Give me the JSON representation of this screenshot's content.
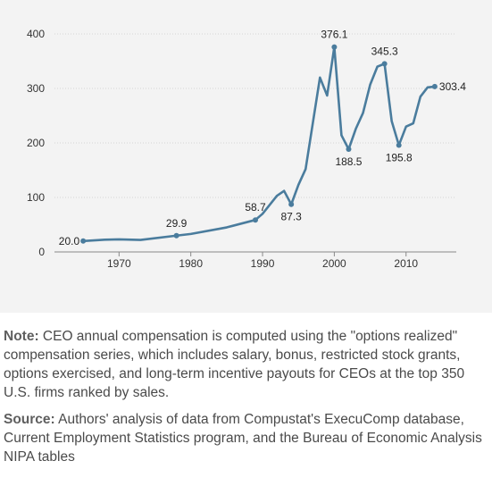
{
  "chart_data": {
    "type": "line",
    "title": "",
    "xlabel": "",
    "ylabel": "",
    "xlim": [
      1961,
      2017
    ],
    "ylim": [
      0,
      400
    ],
    "x_ticks": [
      "1970",
      "1980",
      "1990",
      "2000",
      "2010"
    ],
    "y_ticks": [
      "0",
      "100",
      "200",
      "300",
      "400"
    ],
    "grid": true,
    "color": "#4a7c9d",
    "x": [
      1965,
      1968,
      1970,
      1973,
      1978,
      1980,
      1985,
      1989,
      1990,
      1992,
      1993,
      1994,
      1995,
      1996,
      1997,
      1998,
      1999,
      2000,
      2001,
      2002,
      2003,
      2004,
      2005,
      2006,
      2007,
      2008,
      2009,
      2010,
      2011,
      2012,
      2013,
      2014
    ],
    "series": [
      {
        "values": [
          20.0,
          22.5,
          23.0,
          22.0,
          29.9,
          33.0,
          45.0,
          58.7,
          70.0,
          103.0,
          112.0,
          87.3,
          123.0,
          152.0,
          236.0,
          320.0,
          287.0,
          376.1,
          214.0,
          188.5,
          226.0,
          255.0,
          307.0,
          340.0,
          345.3,
          240.0,
          195.8,
          230.0,
          236.0,
          285.0,
          302.0,
          303.4
        ]
      }
    ],
    "point_labels": [
      {
        "x": 1965,
        "y": 20.0,
        "text": "20.0"
      },
      {
        "x": 1978,
        "y": 29.9,
        "text": "29.9"
      },
      {
        "x": 1989,
        "y": 58.7,
        "text": "58.7"
      },
      {
        "x": 1994,
        "y": 87.3,
        "text": "87.3"
      },
      {
        "x": 2000,
        "y": 376.1,
        "text": "376.1"
      },
      {
        "x": 2002,
        "y": 188.5,
        "text": "188.5"
      },
      {
        "x": 2007,
        "y": 345.3,
        "text": "345.3"
      },
      {
        "x": 2009,
        "y": 195.8,
        "text": "195.8"
      },
      {
        "x": 2014,
        "y": 303.4,
        "text": "303.4"
      }
    ]
  },
  "notes": {
    "note_label": "Note:",
    "note_text": " CEO annual compensation is computed using the \"options realized\" compensation series, which includes salary, bonus, restricted stock grants, options exercised, and long-term incentive payouts for CEOs at the top 350 U.S. firms ranked by sales.",
    "source_label": "Source:",
    "source_text": " Authors' analysis of data from Compustat's ExecuComp database, Current Employment Statistics program, and the Bureau of Economic Analysis NIPA tables"
  }
}
